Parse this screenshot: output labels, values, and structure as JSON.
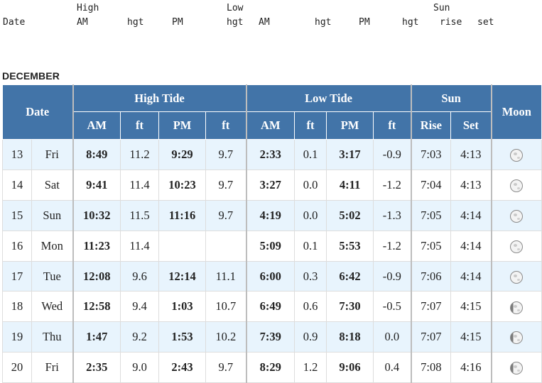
{
  "legacy_header": {
    "line1": {
      "high": "High",
      "low": "Low",
      "sun": "Sun"
    },
    "line2": {
      "date": "Date",
      "am": "AM",
      "hgt1": "hgt",
      "pm": "PM",
      "hgt2": "hgt",
      "am2": "AM",
      "hgt3": "hgt",
      "pm2": "PM",
      "hgt4": "hgt",
      "rise": "rise",
      "set": "set"
    }
  },
  "month_title": "DECEMBER",
  "table": {
    "headers": {
      "date": "Date",
      "high_tide": "High Tide",
      "low_tide": "Low Tide",
      "sun": "Sun",
      "moon": "Moon",
      "am": "AM",
      "ft": "ft",
      "pm": "PM",
      "rise": "Rise",
      "set": "Set"
    },
    "rows": [
      {
        "day": "13",
        "weekday": "Fri",
        "high_am": "8:49",
        "high_am_ft": "11.2",
        "high_pm": "9:29",
        "high_pm_ft": "9.7",
        "low_am": "2:33",
        "low_am_ft": "0.1",
        "low_pm": "3:17",
        "low_pm_ft": "-0.9",
        "rise": "7:03",
        "set": "4:13",
        "moon_icon": "moon-gibbous-icon"
      },
      {
        "day": "14",
        "weekday": "Sat",
        "high_am": "9:41",
        "high_am_ft": "11.4",
        "high_pm": "10:23",
        "high_pm_ft": "9.7",
        "low_am": "3:27",
        "low_am_ft": "0.0",
        "low_pm": "4:11",
        "low_pm_ft": "-1.2",
        "rise": "7:04",
        "set": "4:13",
        "moon_icon": "moon-gibbous-icon"
      },
      {
        "day": "15",
        "weekday": "Sun",
        "high_am": "10:32",
        "high_am_ft": "11.5",
        "high_pm": "11:16",
        "high_pm_ft": "9.7",
        "low_am": "4:19",
        "low_am_ft": "0.0",
        "low_pm": "5:02",
        "low_pm_ft": "-1.3",
        "rise": "7:05",
        "set": "4:14",
        "moon_icon": "moon-full-icon"
      },
      {
        "day": "16",
        "weekday": "Mon",
        "high_am": "11:23",
        "high_am_ft": "11.4",
        "high_pm": "",
        "high_pm_ft": "",
        "low_am": "5:09",
        "low_am_ft": "0.1",
        "low_pm": "5:53",
        "low_pm_ft": "-1.2",
        "rise": "7:05",
        "set": "4:14",
        "moon_icon": "moon-full-icon"
      },
      {
        "day": "17",
        "weekday": "Tue",
        "high_am": "12:08",
        "high_am_ft": "9.6",
        "high_pm": "12:14",
        "high_pm_ft": "11.1",
        "low_am": "6:00",
        "low_am_ft": "0.3",
        "low_pm": "6:42",
        "low_pm_ft": "-0.9",
        "rise": "7:06",
        "set": "4:14",
        "moon_icon": "moon-full-icon"
      },
      {
        "day": "18",
        "weekday": "Wed",
        "high_am": "12:58",
        "high_am_ft": "9.4",
        "high_pm": "1:03",
        "high_pm_ft": "10.7",
        "low_am": "6:49",
        "low_am_ft": "0.6",
        "low_pm": "7:30",
        "low_pm_ft": "-0.5",
        "rise": "7:07",
        "set": "4:15",
        "moon_icon": "moon-waning-gibbous-icon"
      },
      {
        "day": "19",
        "weekday": "Thu",
        "high_am": "1:47",
        "high_am_ft": "9.2",
        "high_pm": "1:53",
        "high_pm_ft": "10.2",
        "low_am": "7:39",
        "low_am_ft": "0.9",
        "low_pm": "8:18",
        "low_pm_ft": "0.0",
        "rise": "7:07",
        "set": "4:15",
        "moon_icon": "moon-waning-gibbous-icon"
      },
      {
        "day": "20",
        "weekday": "Fri",
        "high_am": "2:35",
        "high_am_ft": "9.0",
        "high_pm": "2:43",
        "high_pm_ft": "9.7",
        "low_am": "8:29",
        "low_am_ft": "1.2",
        "low_pm": "9:06",
        "low_pm_ft": "0.4",
        "rise": "7:08",
        "set": "4:16",
        "moon_icon": "moon-waning-gibbous-icon"
      }
    ]
  },
  "colors": {
    "header_bg": "#4274a8",
    "alt_row_bg": "#e8f4fd",
    "text": "#222222"
  }
}
